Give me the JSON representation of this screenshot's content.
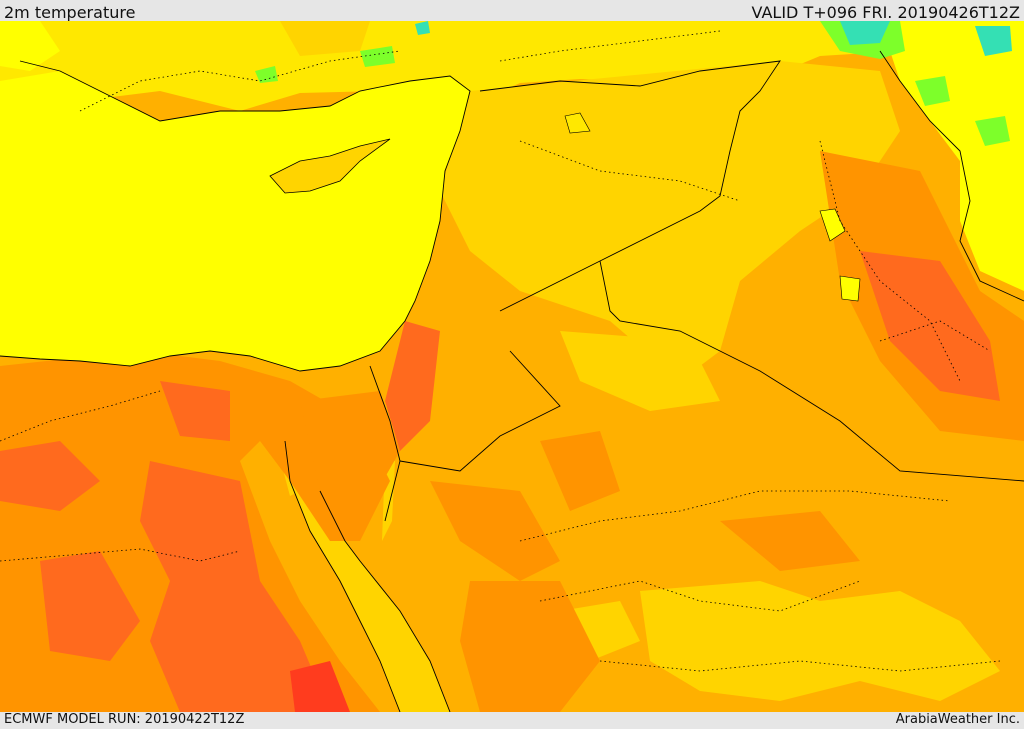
{
  "header": {
    "title": "2m temperature",
    "valid": "VALID T+096 FRI. 20190426T12Z"
  },
  "footer": {
    "model_run": "ECMWF MODEL RUN: 20190422T12Z",
    "credit": "ArabiaWeather Inc."
  },
  "colors": {
    "sea": "#ffff00",
    "pale_yellow": "#ffe800",
    "light_orange": "#ffd400",
    "orange": "#ffb000",
    "dark_orange": "#ff9400",
    "red_orange": "#ff6a1e",
    "deep_red": "#ff3c1e",
    "green": "#7dff2a",
    "teal": "#34e0b4",
    "border": "#000000"
  }
}
